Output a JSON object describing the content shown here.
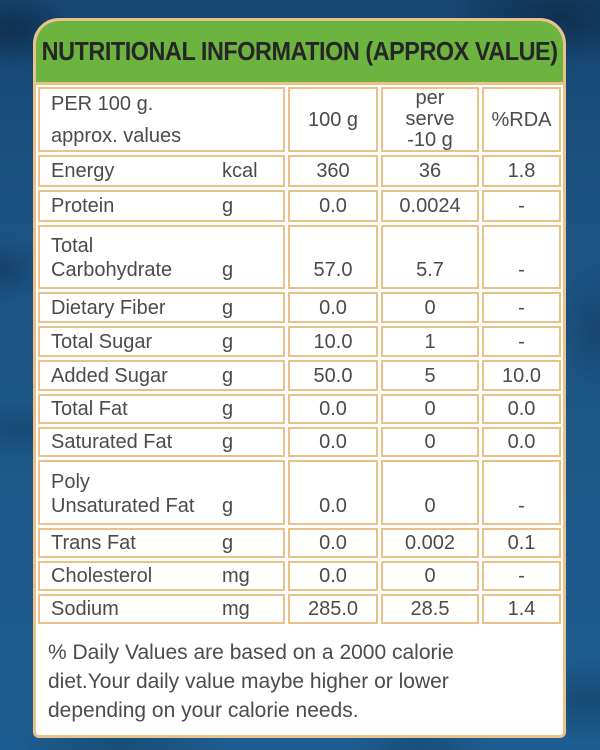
{
  "header": {
    "title": "NUTRITIONAL INFORMATION (APPROX VALUE)"
  },
  "table": {
    "columns": {
      "col1": "PER 100 g.\napprox. values",
      "col2": "100 g",
      "col3": "per\nserve\n-10 g",
      "col4": "%RDA"
    },
    "rows": [
      {
        "label": "Energy",
        "unit": "kcal",
        "per_100g": "360",
        "per_serve": "36",
        "rda": "1.8"
      },
      {
        "label": "Protein",
        "unit": "g",
        "per_100g": "0.0",
        "per_serve": "0.0024",
        "rda": "-"
      },
      {
        "label": "Total\nCarbohydrate",
        "unit": "g",
        "per_100g": "57.0",
        "per_serve": "5.7",
        "rda": "-"
      },
      {
        "label": "Dietary Fiber",
        "unit": "g",
        "per_100g": "0.0",
        "per_serve": "0",
        "rda": "-"
      },
      {
        "label": "Total Sugar",
        "unit": "g",
        "per_100g": "10.0",
        "per_serve": "1",
        "rda": "-"
      },
      {
        "label": "Added Sugar",
        "unit": "g",
        "per_100g": "50.0",
        "per_serve": "5",
        "rda": "10.0"
      },
      {
        "label": "Total Fat",
        "unit": "g",
        "per_100g": "0.0",
        "per_serve": "0",
        "rda": "0.0"
      },
      {
        "label": "Saturated Fat",
        "unit": "g",
        "per_100g": "0.0",
        "per_serve": "0",
        "rda": "0.0"
      },
      {
        "label": "Poly\nUnsaturated Fat",
        "unit": "g",
        "per_100g": "0.0",
        "per_serve": "0",
        "rda": "-"
      },
      {
        "label": "Trans Fat",
        "unit": "g",
        "per_100g": "0.0",
        "per_serve": "0.002",
        "rda": "0.1"
      },
      {
        "label": "Cholesterol",
        "unit": "mg",
        "per_100g": "0.0",
        "per_serve": "0",
        "rda": "-"
      },
      {
        "label": "Sodium",
        "unit": "mg",
        "per_100g": "285.0",
        "per_serve": "28.5",
        "rda": "1.4"
      }
    ]
  },
  "footer": {
    "note": "% Daily Values are based on a 2000 calorie\ndiet.Your daily value maybe higher or lower\ndepending on your calorie needs."
  },
  "colors": {
    "header_green": "#6db340",
    "border_tan": "#e9c28a",
    "background_blue": "#1d5787",
    "text_gray": "#4b4b4b"
  }
}
